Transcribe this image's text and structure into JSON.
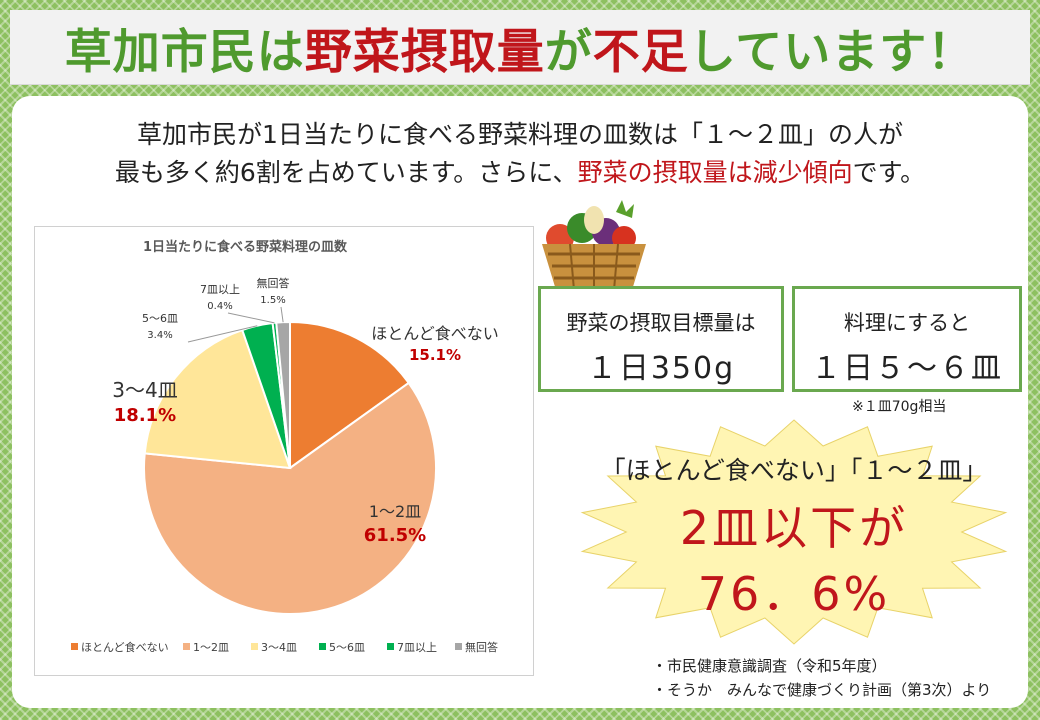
{
  "title": {
    "part1": "草加市民は",
    "part2": "野菜摂取量",
    "part3": "が",
    "part4": "不足",
    "part5": "しています！"
  },
  "intro": {
    "line1": "草加市民が1日当たりに食べる野菜料理の皿数は「１～２皿」の人が",
    "line2_a": "最も多く約6割を占めています。さらに、",
    "line2_b": "野菜の摂取量は減少傾向",
    "line2_c": "です。"
  },
  "chart_data": {
    "type": "pie",
    "title": "1日当たりに食べる野菜料理の皿数",
    "slices": [
      {
        "label": "ほとんど食べない",
        "value": 15.1,
        "pct": "15.1%",
        "color": "#ed7d31"
      },
      {
        "label": "1～2皿",
        "value": 61.5,
        "pct": "61.5%",
        "color": "#f4b183"
      },
      {
        "label": "3～4皿",
        "value": 18.1,
        "pct": "18.1%",
        "color": "#ffe699"
      },
      {
        "label": "5～6皿",
        "value": 3.4,
        "pct": "3.4%",
        "color": "#00b050"
      },
      {
        "label": "7皿以上",
        "value": 0.4,
        "pct": "0.4%",
        "color": "#00b050"
      },
      {
        "label": "無回答",
        "value": 1.5,
        "pct": "1.5%",
        "color": "#a6a6a6"
      }
    ],
    "legend": [
      "ほとんど食べない",
      "1～2皿",
      "3～4皿",
      "5～6皿",
      "7皿以上",
      "無回答"
    ],
    "legend_position": "bottom"
  },
  "info": {
    "box1_line1": "野菜の摂取目標量は",
    "box1_line2": "１日350g",
    "box2_line1": "料理にすると",
    "box2_line2": "１日５～６皿",
    "note": "※１皿70g相当"
  },
  "highlight": {
    "line1": "「ほとんど食べない」「１～２皿」",
    "line2": "2皿以下が",
    "line3": "76．6%"
  },
  "sources": {
    "line1": "・市民健康意識調査（令和5年度）",
    "line2": "・そうか　みんなで健康づくり計画（第3次）より"
  },
  "icons": [
    "vegetable-basket-icon"
  ]
}
